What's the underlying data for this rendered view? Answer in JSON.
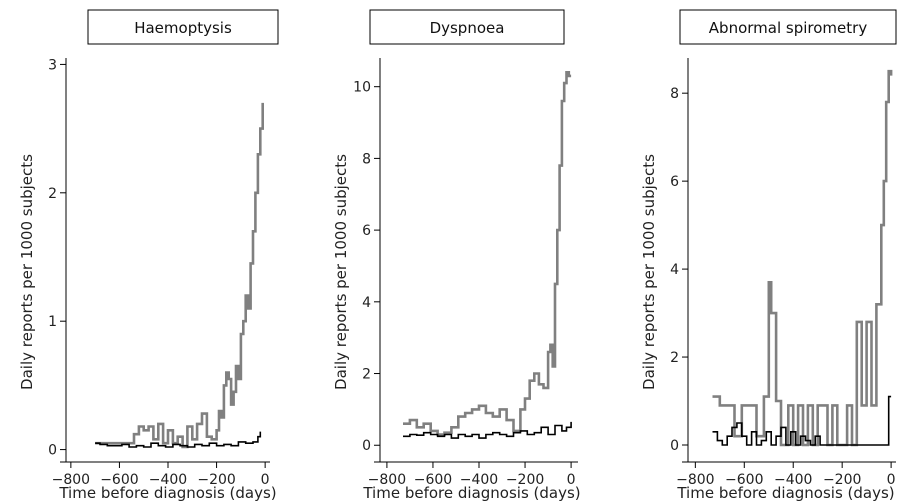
{
  "chart_data": [
    {
      "type": "line",
      "title": "Haemoptysis",
      "xlabel": "Time before diagnosis (days)",
      "ylabel": "Daily reports per 1000 subjects",
      "xlim": [
        -820,
        20
      ],
      "ylim": [
        -0.05,
        3.05
      ],
      "xticks": [
        -800,
        -600,
        -400,
        -200,
        0
      ],
      "yticks": [
        0,
        1,
        2,
        3
      ],
      "series": [
        {
          "color": "#808080",
          "x": [
            -700,
            -560,
            -540,
            -520,
            -500,
            -480,
            -460,
            -440,
            -420,
            -400,
            -380,
            -360,
            -340,
            -320,
            -300,
            -280,
            -260,
            -240,
            -220,
            -200,
            -190,
            -180,
            -170,
            -160,
            -150,
            -140,
            -130,
            -120,
            -110,
            -100,
            -90,
            -80,
            -70,
            -60,
            -50,
            -40,
            -30,
            -20,
            -10
          ],
          "y": [
            0.05,
            0.05,
            0.12,
            0.18,
            0.15,
            0.18,
            0.08,
            0.2,
            0.05,
            0.15,
            0.05,
            0.1,
            0.02,
            0.18,
            0.08,
            0.2,
            0.28,
            0.1,
            0.08,
            0.15,
            0.3,
            0.25,
            0.5,
            0.6,
            0.55,
            0.35,
            0.45,
            0.65,
            0.55,
            0.9,
            1.0,
            1.2,
            1.1,
            1.45,
            1.7,
            2.0,
            2.3,
            2.5,
            2.7
          ]
        },
        {
          "color": "#000000",
          "x": [
            -700,
            -680,
            -650,
            -620,
            -590,
            -560,
            -530,
            -500,
            -470,
            -440,
            -410,
            -380,
            -350,
            -320,
            -290,
            -260,
            -230,
            -200,
            -170,
            -140,
            -110,
            -80,
            -50,
            -30,
            -20
          ],
          "y": [
            0.05,
            0.04,
            0.03,
            0.03,
            0.04,
            0.02,
            0.03,
            0.02,
            0.05,
            0.03,
            0.02,
            0.04,
            0.03,
            0.02,
            0.04,
            0.03,
            0.05,
            0.03,
            0.04,
            0.03,
            0.06,
            0.05,
            0.06,
            0.1,
            0.14
          ]
        }
      ]
    },
    {
      "type": "line",
      "title": "Dyspnoea",
      "xlabel": "Time before diagnosis (days)",
      "ylabel": "Daily reports per 1000 subjects",
      "xlim": [
        -830,
        30
      ],
      "ylim": [
        -0.3,
        10.8
      ],
      "xticks": [
        -800,
        -600,
        -400,
        -200,
        0
      ],
      "yticks": [
        0,
        2,
        4,
        6,
        8,
        10
      ],
      "series": [
        {
          "color": "#808080",
          "x": [
            -730,
            -700,
            -670,
            -640,
            -610,
            -580,
            -550,
            -520,
            -490,
            -460,
            -430,
            -400,
            -370,
            -340,
            -310,
            -280,
            -250,
            -220,
            -200,
            -180,
            -160,
            -140,
            -120,
            -100,
            -90,
            -80,
            -70,
            -60,
            -50,
            -40,
            -30,
            -20,
            -10,
            0
          ],
          "y": [
            0.6,
            0.7,
            0.5,
            0.6,
            0.4,
            0.3,
            0.35,
            0.5,
            0.8,
            0.9,
            1.0,
            1.1,
            0.9,
            0.8,
            1.0,
            0.7,
            0.4,
            1.0,
            1.3,
            1.8,
            2.0,
            1.7,
            1.6,
            2.6,
            2.8,
            2.2,
            4.5,
            6.0,
            7.8,
            9.6,
            10.1,
            10.4,
            10.3,
            10.3
          ]
        },
        {
          "color": "#000000",
          "x": [
            -730,
            -700,
            -670,
            -640,
            -610,
            -580,
            -550,
            -520,
            -490,
            -460,
            -430,
            -400,
            -370,
            -340,
            -310,
            -280,
            -250,
            -220,
            -190,
            -160,
            -130,
            -100,
            -70,
            -40,
            -20,
            0
          ],
          "y": [
            0.25,
            0.3,
            0.28,
            0.35,
            0.3,
            0.25,
            0.3,
            0.2,
            0.3,
            0.25,
            0.3,
            0.2,
            0.3,
            0.35,
            0.3,
            0.25,
            0.35,
            0.4,
            0.3,
            0.35,
            0.5,
            0.3,
            0.55,
            0.4,
            0.5,
            0.65
          ]
        }
      ]
    },
    {
      "type": "line",
      "title": "Abnormal spirometry",
      "xlabel": "Time before diagnosis (days)",
      "ylabel": "Daily reports per 1000 subjects",
      "xlim": [
        -830,
        20
      ],
      "ylim": [
        -0.25,
        8.8
      ],
      "xticks": [
        -800,
        -600,
        -400,
        -200,
        0
      ],
      "yticks": [
        0,
        2,
        4,
        6,
        8
      ],
      "series": [
        {
          "color": "#808080",
          "x": [
            -730,
            -700,
            -670,
            -640,
            -610,
            -580,
            -550,
            -520,
            -500,
            -490,
            -470,
            -450,
            -420,
            -400,
            -380,
            -360,
            -340,
            -320,
            -300,
            -280,
            -260,
            -240,
            -220,
            -200,
            -180,
            -160,
            -140,
            -120,
            -100,
            -80,
            -60,
            -40,
            -30,
            -20,
            -10,
            0
          ],
          "y": [
            1.1,
            0.9,
            0.9,
            0.2,
            0.9,
            0.9,
            0.2,
            1.1,
            3.7,
            3.0,
            1.0,
            0.0,
            0.9,
            0.0,
            0.9,
            0.0,
            0.9,
            0.0,
            0.9,
            0.9,
            0.0,
            0.9,
            0.0,
            0.0,
            0.9,
            0.0,
            2.8,
            0.9,
            2.8,
            0.9,
            3.2,
            5.0,
            6.0,
            7.8,
            8.5,
            8.4
          ]
        },
        {
          "color": "#000000",
          "x": [
            -730,
            -710,
            -690,
            -670,
            -650,
            -630,
            -610,
            -590,
            -570,
            -550,
            -530,
            -510,
            -490,
            -470,
            -450,
            -430,
            -410,
            -390,
            -370,
            -350,
            -330,
            -310,
            -290,
            -270,
            -250,
            -230,
            -210,
            -190,
            -170,
            -150,
            -130,
            -110,
            -90,
            -70,
            -50,
            -30,
            -10,
            0
          ],
          "y": [
            0.3,
            0.1,
            0.0,
            0.2,
            0.4,
            0.5,
            0.2,
            0.0,
            0.3,
            0.0,
            0.1,
            0.3,
            0.0,
            0.2,
            0.4,
            0.0,
            0.3,
            0.0,
            0.2,
            0.1,
            0.0,
            0.2,
            0.0,
            0.0,
            0.0,
            0.0,
            0.0,
            0.0,
            0.0,
            0.0,
            0.0,
            0.0,
            0.0,
            0.0,
            0.0,
            0.0,
            1.1,
            1.1
          ]
        }
      ]
    }
  ]
}
